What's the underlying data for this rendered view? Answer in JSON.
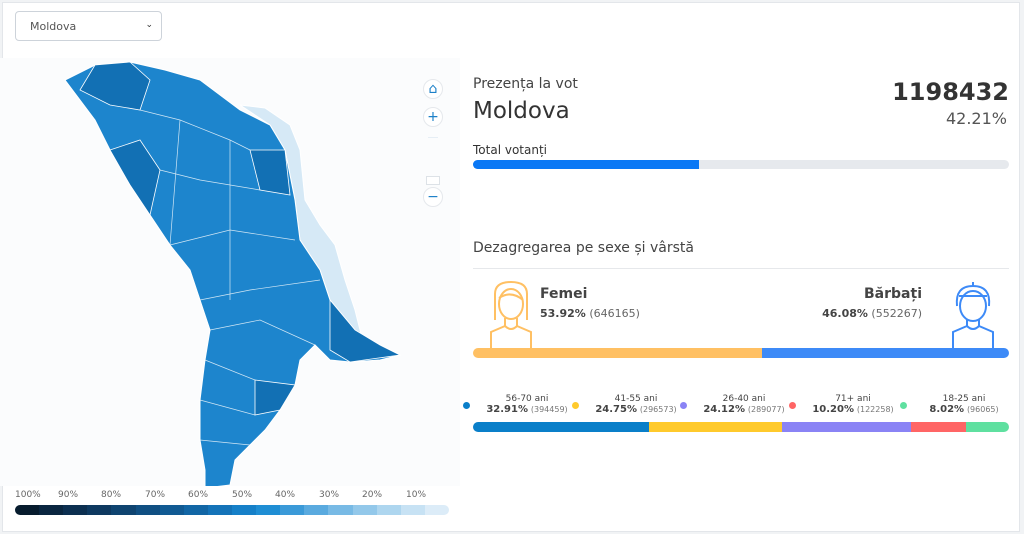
{
  "region_select": {
    "value": "Moldova"
  },
  "map": {
    "controls": [
      "home-icon",
      "zoom-in-icon",
      "zoom-out-icon"
    ]
  },
  "legend": {
    "labels": [
      "100%",
      "90%",
      "80%",
      "70%",
      "60%",
      "50%",
      "40%",
      "30%",
      "20%",
      "10%"
    ],
    "colors": [
      "#071c2e",
      "#0a2640",
      "#0c2f50",
      "#0e3960",
      "#0f4470",
      "#104f82",
      "#115a93",
      "#1266a5",
      "#1473b8",
      "#1680c8",
      "#1f8ed4",
      "#3b9ad8",
      "#5aaadf",
      "#78bae5",
      "#93c8ea",
      "#aed6ef",
      "#c7e2f4",
      "#dcecf8"
    ]
  },
  "turnout": {
    "title": "Prezența la vot",
    "region": "Moldova",
    "total": "1198432",
    "percent": "42.21%",
    "bar_label": "Total votanți",
    "bar_fill": 42.21
  },
  "breakdown": {
    "title": "Dezagregarea pe sexe și vârstă",
    "female": {
      "label": "Femei",
      "percent": "53.92%",
      "count": "(646165)",
      "share": 53.92,
      "color": "#ffc063"
    },
    "male": {
      "label": "Bărbați",
      "percent": "46.08%",
      "count": "(552267)",
      "share": 46.08,
      "color": "#3d8af7"
    },
    "ages": [
      {
        "label": "56-70 ani",
        "percent": "32.91%",
        "count": "(394459)",
        "share": 32.91,
        "color": "#0a7fc9"
      },
      {
        "label": "41-55 ani",
        "percent": "24.75%",
        "count": "(296573)",
        "share": 24.75,
        "color": "#ffca2c"
      },
      {
        "label": "26-40 ani",
        "percent": "24.12%",
        "count": "(289077)",
        "share": 24.12,
        "color": "#8a83f5"
      },
      {
        "label": "71+ ani",
        "percent": "10.20%",
        "count": "(122258)",
        "share": 10.2,
        "color": "#ff6565"
      },
      {
        "label": "18-25 ani",
        "percent": "8.02%",
        "count": "(96065)",
        "share": 8.02,
        "color": "#5fe0a0"
      }
    ]
  }
}
